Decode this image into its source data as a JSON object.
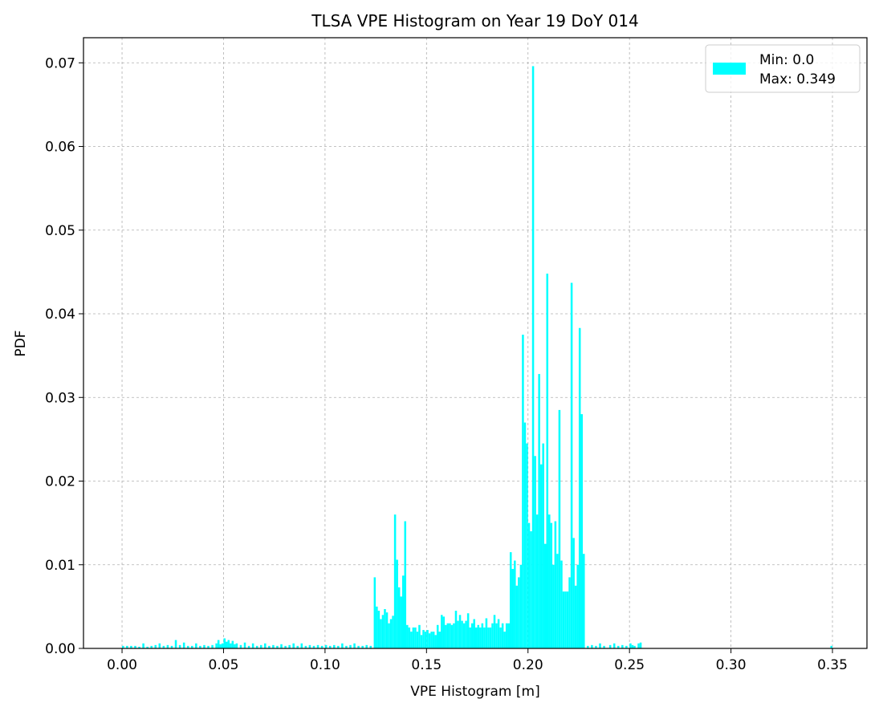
{
  "colors": {
    "bar": "#00ffff",
    "grid": "#b0b0b0",
    "axis": "#000000"
  },
  "chart_data": {
    "type": "bar",
    "title": "TLSA VPE Histogram on Year 19 DoY 014",
    "xlabel": "VPE Histogram [m]",
    "ylabel": "PDF",
    "xlim": [
      -0.019,
      0.367
    ],
    "ylim": [
      0,
      0.073
    ],
    "xticks": [
      "0.00",
      "0.05",
      "0.10",
      "0.15",
      "0.20",
      "0.25",
      "0.30",
      "0.35"
    ],
    "yticks": [
      "0.00",
      "0.01",
      "0.02",
      "0.03",
      "0.04",
      "0.05",
      "0.06",
      "0.07"
    ],
    "grid": true,
    "legend": {
      "position": "top-right",
      "label_lines": [
        "Min: 0.0",
        "Max: 0.349"
      ]
    },
    "bin_width": 0.001,
    "bins": [
      [
        0.0,
        0.0003
      ],
      [
        0.002,
        0.0003
      ],
      [
        0.004,
        0.0003
      ],
      [
        0.006,
        0.0003
      ],
      [
        0.008,
        0.0002
      ],
      [
        0.01,
        0.0006
      ],
      [
        0.012,
        0.0002
      ],
      [
        0.014,
        0.0003
      ],
      [
        0.016,
        0.0004
      ],
      [
        0.018,
        0.0006
      ],
      [
        0.02,
        0.0003
      ],
      [
        0.022,
        0.0004
      ],
      [
        0.024,
        0.0003
      ],
      [
        0.026,
        0.001
      ],
      [
        0.028,
        0.0004
      ],
      [
        0.03,
        0.0007
      ],
      [
        0.032,
        0.0003
      ],
      [
        0.034,
        0.0003
      ],
      [
        0.036,
        0.0006
      ],
      [
        0.038,
        0.0003
      ],
      [
        0.04,
        0.0004
      ],
      [
        0.042,
        0.0003
      ],
      [
        0.044,
        0.0004
      ],
      [
        0.046,
        0.0006
      ],
      [
        0.047,
        0.001
      ],
      [
        0.048,
        0.0005
      ],
      [
        0.049,
        0.0006
      ],
      [
        0.05,
        0.0012
      ],
      [
        0.051,
        0.0008
      ],
      [
        0.052,
        0.001
      ],
      [
        0.053,
        0.0006
      ],
      [
        0.054,
        0.0009
      ],
      [
        0.055,
        0.0005
      ],
      [
        0.056,
        0.0006
      ],
      [
        0.058,
        0.0004
      ],
      [
        0.06,
        0.0007
      ],
      [
        0.062,
        0.0003
      ],
      [
        0.064,
        0.0006
      ],
      [
        0.066,
        0.0003
      ],
      [
        0.068,
        0.0004
      ],
      [
        0.07,
        0.0006
      ],
      [
        0.072,
        0.0003
      ],
      [
        0.074,
        0.0004
      ],
      [
        0.076,
        0.0003
      ],
      [
        0.078,
        0.0005
      ],
      [
        0.08,
        0.0003
      ],
      [
        0.082,
        0.0004
      ],
      [
        0.084,
        0.0006
      ],
      [
        0.086,
        0.0003
      ],
      [
        0.088,
        0.0006
      ],
      [
        0.09,
        0.0003
      ],
      [
        0.092,
        0.0004
      ],
      [
        0.094,
        0.0003
      ],
      [
        0.096,
        0.0004
      ],
      [
        0.098,
        0.0003
      ],
      [
        0.1,
        0.0004
      ],
      [
        0.102,
        0.0003
      ],
      [
        0.104,
        0.0004
      ],
      [
        0.106,
        0.0003
      ],
      [
        0.108,
        0.0006
      ],
      [
        0.11,
        0.0003
      ],
      [
        0.112,
        0.0004
      ],
      [
        0.114,
        0.0006
      ],
      [
        0.116,
        0.0003
      ],
      [
        0.118,
        0.0003
      ],
      [
        0.12,
        0.0004
      ],
      [
        0.122,
        0.0003
      ],
      [
        0.124,
        0.0085
      ],
      [
        0.125,
        0.005
      ],
      [
        0.126,
        0.0045
      ],
      [
        0.127,
        0.0035
      ],
      [
        0.128,
        0.004
      ],
      [
        0.129,
        0.0047
      ],
      [
        0.13,
        0.0043
      ],
      [
        0.131,
        0.003
      ],
      [
        0.132,
        0.0035
      ],
      [
        0.133,
        0.0039
      ],
      [
        0.134,
        0.016
      ],
      [
        0.135,
        0.0106
      ],
      [
        0.136,
        0.0073
      ],
      [
        0.137,
        0.0062
      ],
      [
        0.138,
        0.0087
      ],
      [
        0.139,
        0.0152
      ],
      [
        0.14,
        0.0028
      ],
      [
        0.141,
        0.0025
      ],
      [
        0.142,
        0.002
      ],
      [
        0.143,
        0.0025
      ],
      [
        0.144,
        0.0025
      ],
      [
        0.145,
        0.002
      ],
      [
        0.146,
        0.0028
      ],
      [
        0.147,
        0.0016
      ],
      [
        0.148,
        0.0022
      ],
      [
        0.149,
        0.002
      ],
      [
        0.15,
        0.0022
      ],
      [
        0.151,
        0.0018
      ],
      [
        0.152,
        0.002
      ],
      [
        0.153,
        0.002
      ],
      [
        0.154,
        0.0016
      ],
      [
        0.155,
        0.0028
      ],
      [
        0.156,
        0.002
      ],
      [
        0.157,
        0.004
      ],
      [
        0.158,
        0.0038
      ],
      [
        0.159,
        0.0028
      ],
      [
        0.16,
        0.003
      ],
      [
        0.161,
        0.003
      ],
      [
        0.162,
        0.0028
      ],
      [
        0.163,
        0.003
      ],
      [
        0.164,
        0.0045
      ],
      [
        0.165,
        0.0033
      ],
      [
        0.166,
        0.004
      ],
      [
        0.167,
        0.0033
      ],
      [
        0.168,
        0.003
      ],
      [
        0.169,
        0.0033
      ],
      [
        0.17,
        0.0042
      ],
      [
        0.171,
        0.0025
      ],
      [
        0.172,
        0.003
      ],
      [
        0.173,
        0.0035
      ],
      [
        0.174,
        0.0025
      ],
      [
        0.175,
        0.0028
      ],
      [
        0.176,
        0.0025
      ],
      [
        0.177,
        0.003
      ],
      [
        0.178,
        0.0025
      ],
      [
        0.179,
        0.0036
      ],
      [
        0.18,
        0.0025
      ],
      [
        0.181,
        0.0025
      ],
      [
        0.182,
        0.003
      ],
      [
        0.183,
        0.004
      ],
      [
        0.184,
        0.003
      ],
      [
        0.185,
        0.0035
      ],
      [
        0.186,
        0.0025
      ],
      [
        0.187,
        0.003
      ],
      [
        0.188,
        0.002
      ],
      [
        0.189,
        0.003
      ],
      [
        0.19,
        0.003
      ],
      [
        0.191,
        0.0115
      ],
      [
        0.192,
        0.0095
      ],
      [
        0.193,
        0.0105
      ],
      [
        0.194,
        0.0075
      ],
      [
        0.195,
        0.0085
      ],
      [
        0.196,
        0.01
      ],
      [
        0.197,
        0.0375
      ],
      [
        0.198,
        0.027
      ],
      [
        0.199,
        0.0245
      ],
      [
        0.2,
        0.015
      ],
      [
        0.201,
        0.014
      ],
      [
        0.202,
        0.0696
      ],
      [
        0.203,
        0.023
      ],
      [
        0.204,
        0.016
      ],
      [
        0.205,
        0.0328
      ],
      [
        0.206,
        0.022
      ],
      [
        0.207,
        0.0245
      ],
      [
        0.208,
        0.0125
      ],
      [
        0.209,
        0.0448
      ],
      [
        0.21,
        0.016
      ],
      [
        0.211,
        0.015
      ],
      [
        0.212,
        0.01
      ],
      [
        0.213,
        0.0152
      ],
      [
        0.214,
        0.0113
      ],
      [
        0.215,
        0.0285
      ],
      [
        0.216,
        0.0105
      ],
      [
        0.217,
        0.0068
      ],
      [
        0.218,
        0.0068
      ],
      [
        0.219,
        0.0068
      ],
      [
        0.22,
        0.0085
      ],
      [
        0.221,
        0.0437
      ],
      [
        0.222,
        0.0132
      ],
      [
        0.223,
        0.0075
      ],
      [
        0.224,
        0.01
      ],
      [
        0.225,
        0.0383
      ],
      [
        0.226,
        0.028
      ],
      [
        0.227,
        0.0113
      ],
      [
        0.229,
        0.0003
      ],
      [
        0.231,
        0.0004
      ],
      [
        0.233,
        0.0003
      ],
      [
        0.235,
        0.0006
      ],
      [
        0.237,
        0.0003
      ],
      [
        0.24,
        0.0004
      ],
      [
        0.242,
        0.0006
      ],
      [
        0.244,
        0.0003
      ],
      [
        0.246,
        0.0004
      ],
      [
        0.248,
        0.0003
      ],
      [
        0.25,
        0.0006
      ],
      [
        0.251,
        0.0004
      ],
      [
        0.252,
        0.0003
      ],
      [
        0.254,
        0.0006
      ],
      [
        0.255,
        0.0007
      ],
      [
        0.349,
        0.0003
      ]
    ]
  }
}
